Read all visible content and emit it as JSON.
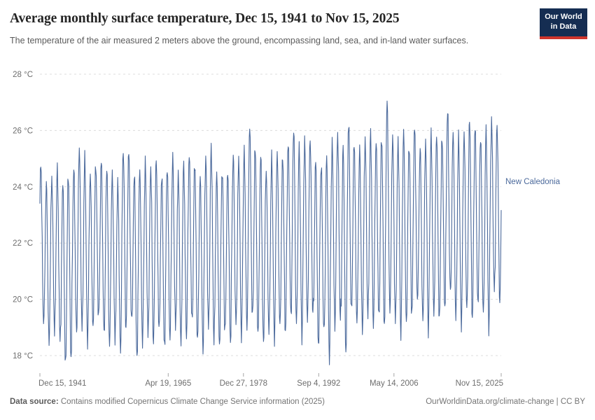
{
  "header": {
    "title": "Average monthly surface temperature, Dec 15, 1941 to Nov 15, 2025",
    "subtitle": "The temperature of the air measured 2 meters above the ground, encompassing land, sea, and in-land water surfaces."
  },
  "logo": {
    "line1": "Our World",
    "line2": "in Data"
  },
  "footer": {
    "source_label": "Data source:",
    "source_text": " Contains modified Copernicus Climate Change Service information (2025)",
    "right_text": "OurWorldinData.org/climate-change | CC BY"
  },
  "chart_data": {
    "type": "line",
    "title": "Average monthly surface temperature",
    "entity": "New Caledonia",
    "series_label": "New Caledonia",
    "unit": "°C",
    "color": "#4c6a9c",
    "grid": true,
    "legend_position": "right-of-line-end",
    "x_range": [
      "Dec 15, 1941",
      "Nov 15, 2025"
    ],
    "ylim": [
      17.2,
      28
    ],
    "n_months": 1008,
    "y_ticks": [
      {
        "value": 28,
        "label": "28 °C"
      },
      {
        "value": 26,
        "label": "26 °C"
      },
      {
        "value": 24,
        "label": "24 °C"
      },
      {
        "value": 22,
        "label": "22 °C"
      },
      {
        "value": 20,
        "label": "20 °C"
      },
      {
        "value": 18,
        "label": "18 °C"
      }
    ],
    "x_ticks": [
      {
        "label": "Dec 15, 1941",
        "t": 1941.955,
        "align": "start"
      },
      {
        "label": "Apr 19, 1965",
        "t": 1965.297,
        "align": "middle"
      },
      {
        "label": "Dec 27, 1978",
        "t": 1978.986,
        "align": "middle"
      },
      {
        "label": "Sep 4, 1992",
        "t": 1992.677,
        "align": "middle"
      },
      {
        "label": "May 14, 2006",
        "t": 2006.366,
        "align": "middle"
      },
      {
        "label": "Nov 15, 2025",
        "t": 2025.873,
        "align": "end"
      }
    ],
    "seasonality_note": "Monthly series oscillates yearly: summer peak ~February, winter trough ~August (estimated envelope below)",
    "envelope": {
      "year_start": 1942,
      "years_end": 2025,
      "summer_max": [
        24.8,
        24.1,
        24.3,
        24.6,
        24.2,
        24.4,
        24.6,
        25.4,
        25.0,
        24.4,
        24.8,
        24.9,
        24.7,
        24.4,
        24.1,
        25.3,
        25.2,
        24.5,
        24.6,
        24.8,
        24.7,
        24.9,
        24.4,
        24.7,
        25.0,
        24.5,
        24.8,
        25.1,
        24.9,
        24.3,
        25.0,
        25.4,
        24.4,
        24.6,
        24.5,
        25.1,
        25.0,
        25.2,
        26.2,
        25.4,
        25.1,
        24.6,
        25.0,
        25.2,
        25.1,
        25.5,
        26.1,
        25.4,
        25.6,
        25.7,
        24.9,
        24.8,
        25.1,
        25.5,
        25.9,
        25.4,
        26.3,
        25.6,
        25.3,
        25.7,
        25.9,
        25.6,
        25.8,
        27.0,
        25.8,
        25.6,
        25.9,
        25.5,
        26.1,
        25.4,
        25.6,
        25.8,
        25.9,
        25.7,
        26.7,
        26.0,
        25.7,
        25.9,
        26.4,
        26.1,
        25.8,
        26.0,
        26.3,
        26.2
      ],
      "winter_min": [
        19.2,
        18.4,
        18.9,
        18.6,
        17.6,
        17.9,
        18.8,
        19.0,
        18.5,
        18.9,
        19.4,
        18.8,
        18.3,
        18.7,
        18.1,
        18.9,
        19.3,
        17.8,
        18.5,
        18.8,
        18.4,
        19.0,
        18.2,
        18.6,
        19.1,
        18.4,
        18.7,
        19.2,
        18.5,
        18.2,
        19.0,
        18.6,
        18.3,
        18.8,
        18.5,
        19.1,
        18.7,
        19.0,
        19.3,
        18.8,
        18.4,
        18.9,
        18.6,
        19.0,
        18.8,
        19.4,
        19.1,
        18.7,
        19.2,
        19.5,
        18.3,
        18.8,
        17.9,
        19.0,
        19.3,
        18.1,
        19.5,
        19.2,
        18.9,
        19.4,
        19.1,
        19.3,
        19.0,
        19.6,
        19.2,
        18.8,
        19.1,
        19.4,
        20.0,
        19.2,
        18.9,
        19.5,
        19.2,
        19.7,
        20.2,
        19.4,
        19.1,
        19.6,
        19.3,
        19.8,
        19.5,
        19.0,
        20.3,
        19.9
      ]
    }
  }
}
